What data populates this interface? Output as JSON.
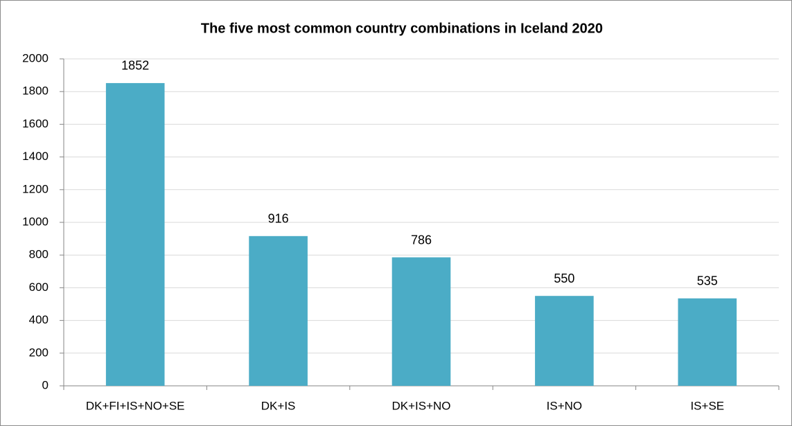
{
  "chart_data": {
    "type": "bar",
    "title": "The five most common country combinations in Iceland 2020",
    "categories": [
      "DK+FI+IS+NO+SE",
      "DK+IS",
      "DK+IS+NO",
      "IS+NO",
      "IS+SE"
    ],
    "values": [
      1852,
      916,
      786,
      550,
      535
    ],
    "color": "#4bacc6",
    "ylim": [
      0,
      2000
    ],
    "yticks": [
      0,
      200,
      400,
      600,
      800,
      1000,
      1200,
      1400,
      1600,
      1800,
      2000
    ],
    "grid": true
  }
}
